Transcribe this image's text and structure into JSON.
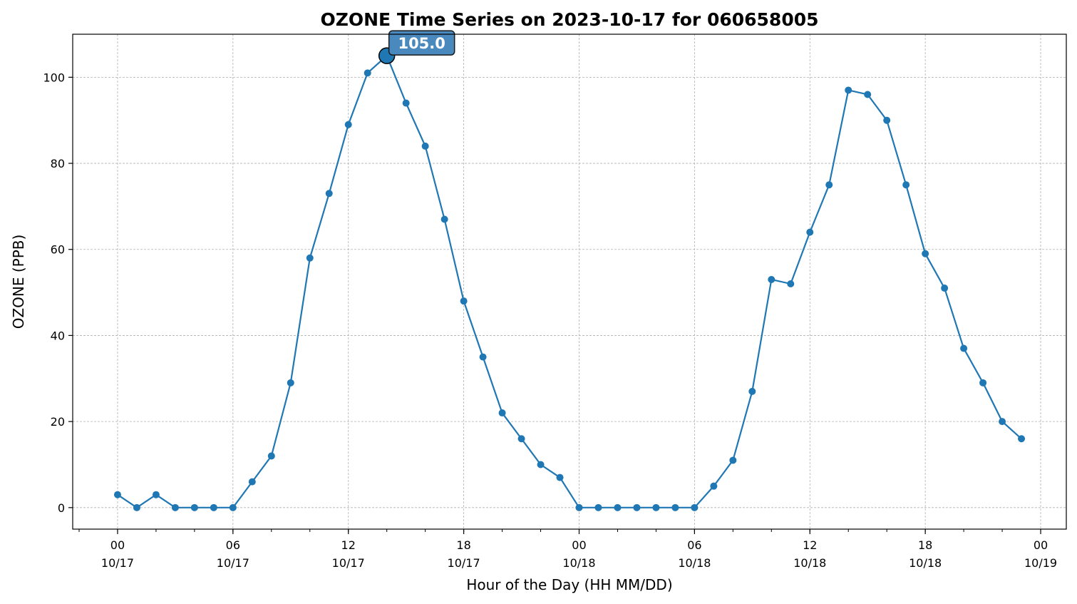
{
  "chart_data": {
    "type": "line",
    "title": "OZONE Time Series on 2023-10-17 for 060658005",
    "xlabel": "Hour of the Day (HH MM/DD)",
    "ylabel": "OZONE (PPB)",
    "xlim": [
      "2023-10-16T21:40",
      "2023-10-19T01:20"
    ],
    "ylim": [
      -5,
      110
    ],
    "yticks": [
      0,
      20,
      40,
      60,
      80,
      100
    ],
    "xticks": [
      {
        "time": "2023-10-17T00:00",
        "hour": "00",
        "date": "10/17"
      },
      {
        "time": "2023-10-17T06:00",
        "hour": "06",
        "date": "10/17"
      },
      {
        "time": "2023-10-17T12:00",
        "hour": "12",
        "date": "10/17"
      },
      {
        "time": "2023-10-17T18:00",
        "hour": "18",
        "date": "10/17"
      },
      {
        "time": "2023-10-18T00:00",
        "hour": "00",
        "date": "10/18"
      },
      {
        "time": "2023-10-18T06:00",
        "hour": "06",
        "date": "10/18"
      },
      {
        "time": "2023-10-18T12:00",
        "hour": "12",
        "date": "10/18"
      },
      {
        "time": "2023-10-18T18:00",
        "hour": "18",
        "date": "10/18"
      },
      {
        "time": "2023-10-19T00:00",
        "hour": "00",
        "date": "10/19"
      }
    ],
    "grid": true,
    "series": [
      {
        "color": "#1f77b4",
        "x": [
          "2023-10-17T00:00",
          "2023-10-17T01:00",
          "2023-10-17T02:00",
          "2023-10-17T03:00",
          "2023-10-17T04:00",
          "2023-10-17T05:00",
          "2023-10-17T06:00",
          "2023-10-17T07:00",
          "2023-10-17T08:00",
          "2023-10-17T09:00",
          "2023-10-17T10:00",
          "2023-10-17T11:00",
          "2023-10-17T12:00",
          "2023-10-17T13:00",
          "2023-10-17T14:00",
          "2023-10-17T15:00",
          "2023-10-17T16:00",
          "2023-10-17T17:00",
          "2023-10-17T18:00",
          "2023-10-17T19:00",
          "2023-10-17T20:00",
          "2023-10-17T21:00",
          "2023-10-17T22:00",
          "2023-10-17T23:00",
          "2023-10-18T00:00",
          "2023-10-18T01:00",
          "2023-10-18T02:00",
          "2023-10-18T03:00",
          "2023-10-18T04:00",
          "2023-10-18T05:00",
          "2023-10-18T06:00",
          "2023-10-18T07:00",
          "2023-10-18T08:00",
          "2023-10-18T09:00",
          "2023-10-18T10:00",
          "2023-10-18T11:00",
          "2023-10-18T12:00",
          "2023-10-18T13:00",
          "2023-10-18T14:00",
          "2023-10-18T15:00",
          "2023-10-18T16:00",
          "2023-10-18T17:00",
          "2023-10-18T18:00",
          "2023-10-18T19:00",
          "2023-10-18T20:00",
          "2023-10-18T21:00",
          "2023-10-18T22:00",
          "2023-10-18T23:00"
        ],
        "values": [
          3,
          0,
          3,
          0,
          0,
          0,
          0,
          6,
          12,
          29,
          58,
          73,
          89,
          101,
          105,
          94,
          84,
          67,
          48,
          35,
          22,
          16,
          10,
          7,
          0,
          0,
          0,
          0,
          0,
          0,
          0,
          5,
          11,
          27,
          53,
          52,
          64,
          75,
          97,
          96,
          90,
          75,
          59,
          51,
          37,
          29,
          20,
          16
        ]
      }
    ],
    "annotations": [
      {
        "x": "2023-10-17T14:00",
        "y": 105,
        "text": "105.0",
        "box_color": "#4a89bd"
      }
    ]
  }
}
